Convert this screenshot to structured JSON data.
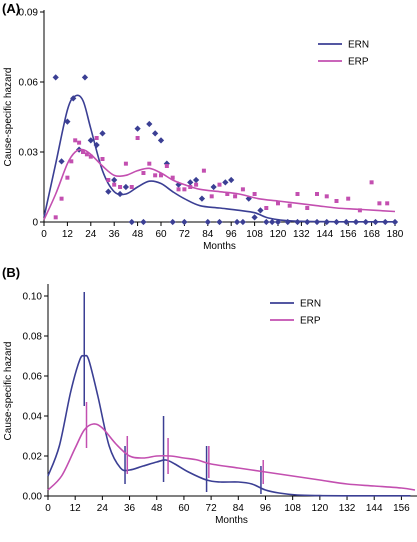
{
  "chart_data": [
    {
      "type": "line",
      "panel_label": "(A)",
      "ylabel": "Cause-specific hazard",
      "xlabel": "Months",
      "xlim": [
        0,
        180
      ],
      "ylim": [
        0,
        0.09
      ],
      "x_ticks": [
        0,
        12,
        24,
        36,
        48,
        60,
        72,
        84,
        96,
        108,
        120,
        132,
        144,
        156,
        168,
        180
      ],
      "x_tick_labels": [
        "0",
        "12",
        "24",
        "36",
        "48",
        "60",
        "72",
        "84",
        "96",
        "108",
        "120",
        "132",
        "144",
        "156",
        "168",
        "180"
      ],
      "y_ticks": [
        0,
        0.03,
        0.06,
        0.09
      ],
      "y_tick_labels": [
        "0",
        "0.03",
        "0.06",
        "0.09"
      ],
      "legend_position": "top-right",
      "series": [
        {
          "name": "ERN",
          "color": "#3b3f94",
          "line": {
            "x": [
              0,
              6,
              12,
              16,
              20,
              24,
              30,
              36,
              42,
              48,
              54,
              60,
              66,
              72,
              80,
              90,
              100,
              108,
              114,
              120,
              126,
              132,
              140,
              150,
              160,
              170,
              180
            ],
            "y": [
              0.002,
              0.025,
              0.048,
              0.054,
              0.052,
              0.04,
              0.022,
              0.013,
              0.012,
              0.015,
              0.0175,
              0.0165,
              0.013,
              0.01,
              0.007,
              0.006,
              0.005,
              0.004,
              0.002,
              0.001,
              0.0005,
              0.0003,
              0.0002,
              0.0001,
              0.0001,
              0.0001,
              0.0001
            ]
          },
          "points": {
            "x": [
              6,
              9,
              12,
              15,
              18,
              21,
              24,
              27,
              30,
              33,
              36,
              39,
              42,
              45,
              48,
              51,
              54,
              57,
              60,
              63,
              66,
              69,
              72,
              75,
              78,
              81,
              84,
              87,
              90,
              93,
              96,
              99,
              102,
              105,
              108,
              111,
              114,
              117,
              120,
              125,
              130,
              135,
              140,
              145,
              150,
              155,
              160,
              165,
              170,
              175,
              180
            ],
            "y": [
              0.062,
              0.026,
              0.043,
              0.053,
              0.031,
              0.062,
              0.035,
              0.033,
              0.038,
              0.013,
              0.018,
              0.012,
              0.015,
              0.0,
              0.04,
              0.0,
              0.042,
              0.038,
              0.035,
              0.025,
              0.0,
              0.016,
              0.0,
              0.017,
              0.018,
              0.01,
              0.0,
              0.015,
              0.0,
              0.017,
              0.018,
              0.0,
              0.0,
              0.01,
              0.002,
              0.005,
              0.0,
              0.0,
              0.0,
              0.0,
              0.0,
              0.0,
              0.0,
              0.0,
              0.0,
              0.0,
              0.0,
              0.0,
              0.0,
              0.0,
              0.0
            ]
          }
        },
        {
          "name": "ERP",
          "color": "#c34fb0",
          "line": {
            "x": [
              0,
              6,
              12,
              16,
              20,
              24,
              30,
              36,
              42,
              48,
              54,
              60,
              66,
              72,
              80,
              90,
              100,
              110,
              120,
              130,
              140,
              150,
              160,
              170,
              180
            ],
            "y": [
              0.001,
              0.012,
              0.025,
              0.03,
              0.031,
              0.029,
              0.024,
              0.02,
              0.02,
              0.022,
              0.023,
              0.021,
              0.018,
              0.016,
              0.014,
              0.013,
              0.012,
              0.01,
              0.009,
              0.008,
              0.007,
              0.006,
              0.0055,
              0.005,
              0.0045
            ]
          },
          "points": {
            "x": [
              6,
              9,
              12,
              14,
              16,
              18,
              20,
              22,
              24,
              27,
              30,
              33,
              36,
              39,
              42,
              45,
              48,
              51,
              54,
              57,
              60,
              63,
              66,
              69,
              72,
              75,
              78,
              82,
              86,
              90,
              94,
              98,
              102,
              108,
              114,
              120,
              126,
              130,
              135,
              140,
              145,
              150,
              156,
              162,
              168,
              172,
              176
            ],
            "y": [
              0.002,
              0.01,
              0.019,
              0.026,
              0.035,
              0.034,
              0.03,
              0.029,
              0.028,
              0.036,
              0.027,
              0.018,
              0.016,
              0.015,
              0.025,
              0.015,
              0.036,
              0.021,
              0.025,
              0.02,
              0.02,
              0.024,
              0.019,
              0.014,
              0.014,
              0.015,
              0.016,
              0.022,
              0.011,
              0.016,
              0.012,
              0.011,
              0.014,
              0.012,
              0.006,
              0.008,
              0.007,
              0.012,
              0.006,
              0.012,
              0.011,
              0.009,
              0.01,
              0.005,
              0.017,
              0.008,
              0.008
            ]
          }
        }
      ]
    },
    {
      "type": "line",
      "panel_label": "(B)",
      "ylabel": "Cause-specific hazard",
      "xlabel": "Months",
      "xlim": [
        0,
        162
      ],
      "ylim": [
        0,
        0.105
      ],
      "x_ticks": [
        0,
        12,
        24,
        36,
        48,
        60,
        72,
        84,
        96,
        108,
        120,
        132,
        144,
        156
      ],
      "x_tick_labels": [
        "0",
        "12",
        "24",
        "36",
        "48",
        "60",
        "72",
        "84",
        "96",
        "108",
        "120",
        "132",
        "144",
        "156"
      ],
      "y_ticks": [
        0.0,
        0.02,
        0.04,
        0.06,
        0.08,
        0.1
      ],
      "y_tick_labels": [
        "0.00",
        "0.02",
        "0.04",
        "0.06",
        "0.08",
        "0.10"
      ],
      "legend_position": "top-right",
      "series": [
        {
          "name": "ERN",
          "color": "#3b3f94",
          "line": {
            "x": [
              0,
              5,
              10,
              14,
              16,
              18,
              22,
              27,
              32,
              36,
              42,
              48,
              52,
              56,
              62,
              70,
              76,
              84,
              90,
              96,
              102,
              110,
              120,
              130,
              140,
              150,
              160
            ],
            "y": [
              0.01,
              0.025,
              0.052,
              0.068,
              0.07,
              0.068,
              0.05,
              0.025,
              0.014,
              0.013,
              0.015,
              0.017,
              0.018,
              0.016,
              0.012,
              0.008,
              0.007,
              0.007,
              0.006,
              0.003,
              0.0015,
              0.0005,
              0.0002,
              0.0001,
              0.0001,
              0.0001,
              0.0001
            ]
          },
          "error_bars": [
            {
              "x": 16,
              "low": 0.045,
              "high": 0.102
            },
            {
              "x": 34,
              "low": 0.006,
              "high": 0.025
            },
            {
              "x": 51,
              "low": 0.007,
              "high": 0.04
            },
            {
              "x": 70,
              "low": 0.002,
              "high": 0.025
            },
            {
              "x": 94,
              "low": 0.001,
              "high": 0.015
            }
          ]
        },
        {
          "name": "ERP",
          "color": "#c34fb0",
          "line": {
            "x": [
              0,
              6,
              12,
              16,
              20,
              24,
              30,
              36,
              42,
              48,
              54,
              60,
              66,
              72,
              84,
              96,
              108,
              120,
              132,
              144,
              156,
              162
            ],
            "y": [
              0.003,
              0.01,
              0.024,
              0.033,
              0.036,
              0.034,
              0.026,
              0.02,
              0.019,
              0.02,
              0.02,
              0.019,
              0.018,
              0.016,
              0.014,
              0.012,
              0.01,
              0.008,
              0.006,
              0.005,
              0.004,
              0.003
            ]
          },
          "error_bars": [
            {
              "x": 17,
              "low": 0.024,
              "high": 0.047
            },
            {
              "x": 35,
              "low": 0.011,
              "high": 0.03
            },
            {
              "x": 53,
              "low": 0.011,
              "high": 0.029
            },
            {
              "x": 71,
              "low": 0.009,
              "high": 0.025
            },
            {
              "x": 95,
              "low": 0.006,
              "high": 0.018
            }
          ]
        }
      ]
    }
  ]
}
